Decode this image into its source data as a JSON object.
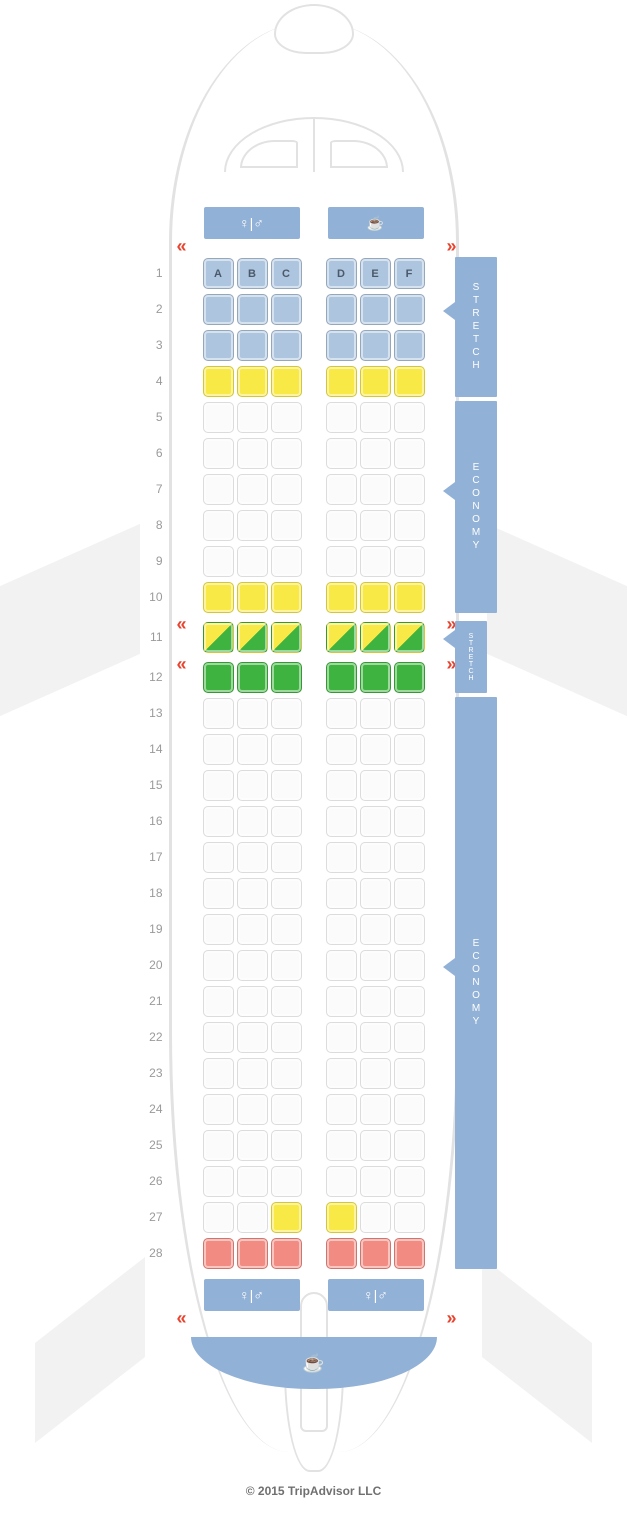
{
  "copyright": "© 2015 TripAdvisor LLC",
  "columns_left": [
    "A",
    "B",
    "C"
  ],
  "columns_right": [
    "D",
    "E",
    "F"
  ],
  "seat_colors": {
    "stretch": "#aec5df",
    "standard": "#fbfbfc",
    "yellow": "#f8e946",
    "green": "#3fb33f",
    "red": "#f28b82",
    "facility": "#92b1d6"
  },
  "rows": [
    {
      "n": 1,
      "type": "stretch",
      "show_letters": true
    },
    {
      "n": 2,
      "type": "stretch"
    },
    {
      "n": 3,
      "type": "stretch"
    },
    {
      "n": 4,
      "type": "yellow"
    },
    {
      "n": 5,
      "type": "standard"
    },
    {
      "n": 6,
      "type": "standard"
    },
    {
      "n": 7,
      "type": "standard"
    },
    {
      "n": 8,
      "type": "standard"
    },
    {
      "n": 9,
      "type": "standard"
    },
    {
      "n": 10,
      "type": "yellow"
    },
    {
      "n": 11,
      "type": "mixed",
      "exit_before": true
    },
    {
      "n": 12,
      "type": "green",
      "exit_before": true
    },
    {
      "n": 13,
      "type": "standard"
    },
    {
      "n": 14,
      "type": "standard"
    },
    {
      "n": 15,
      "type": "standard"
    },
    {
      "n": 16,
      "type": "standard"
    },
    {
      "n": 17,
      "type": "standard"
    },
    {
      "n": 18,
      "type": "standard"
    },
    {
      "n": 19,
      "type": "standard"
    },
    {
      "n": 20,
      "type": "standard"
    },
    {
      "n": 21,
      "type": "standard"
    },
    {
      "n": 22,
      "type": "standard"
    },
    {
      "n": 23,
      "type": "standard"
    },
    {
      "n": 24,
      "type": "standard"
    },
    {
      "n": 25,
      "type": "standard"
    },
    {
      "n": 26,
      "type": "standard"
    },
    {
      "n": 27,
      "left": [
        "standard",
        "standard",
        "yellow"
      ],
      "right": [
        "yellow",
        "standard",
        "standard"
      ]
    },
    {
      "n": 28,
      "type": "red"
    }
  ],
  "class_labels": [
    {
      "text": "STRETCH",
      "from_row": 1,
      "to_row": 4,
      "pointer_row": 2,
      "small": false
    },
    {
      "text": "ECONOMY",
      "from_row": 5,
      "to_row": 10,
      "pointer_row": 7,
      "small": false
    },
    {
      "text": "STRETCH",
      "from_row": 11,
      "to_row": 12,
      "pointer_row": 11,
      "small": true
    },
    {
      "text": "ECONOMY",
      "from_row": 13,
      "to_row": 28,
      "pointer_row": 20,
      "small": false
    }
  ],
  "front_facilities": [
    {
      "type": "lavatory",
      "width": 96
    },
    {
      "type": "galley",
      "width": 96
    }
  ],
  "rear_facilities": [
    {
      "type": "lavatory",
      "width": 96
    },
    {
      "type": "lavatory",
      "width": 96
    }
  ],
  "icons": {
    "lavatory": "♀|♂",
    "galley": "☕"
  }
}
